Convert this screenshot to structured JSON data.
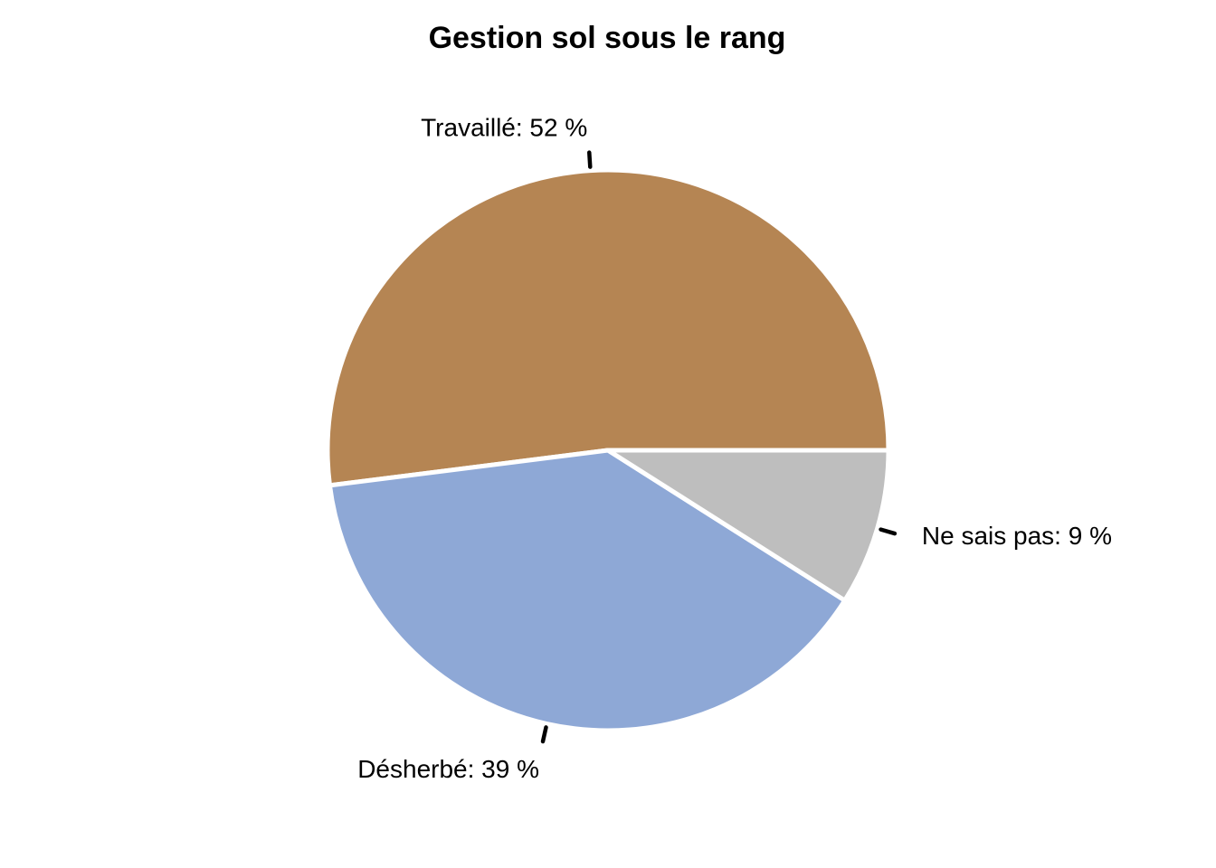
{
  "chart_data": {
    "type": "pie",
    "title": "Gestion sol sous le rang",
    "start_angle_deg": 0,
    "direction": "counterclockwise",
    "slices": [
      {
        "name": "Travaillé",
        "value": 52,
        "label": "Travaillé: 52 %",
        "color": "#B58553",
        "label_side": "top"
      },
      {
        "name": "Désherbé",
        "value": 39,
        "label": "Désherbé: 39 %",
        "color": "#8EA8D6",
        "label_side": "bottom"
      },
      {
        "name": "Ne sais pas",
        "value": 9,
        "label": "Ne sais pas: 9 %",
        "color": "#BEBEBE",
        "label_side": "right"
      }
    ]
  }
}
